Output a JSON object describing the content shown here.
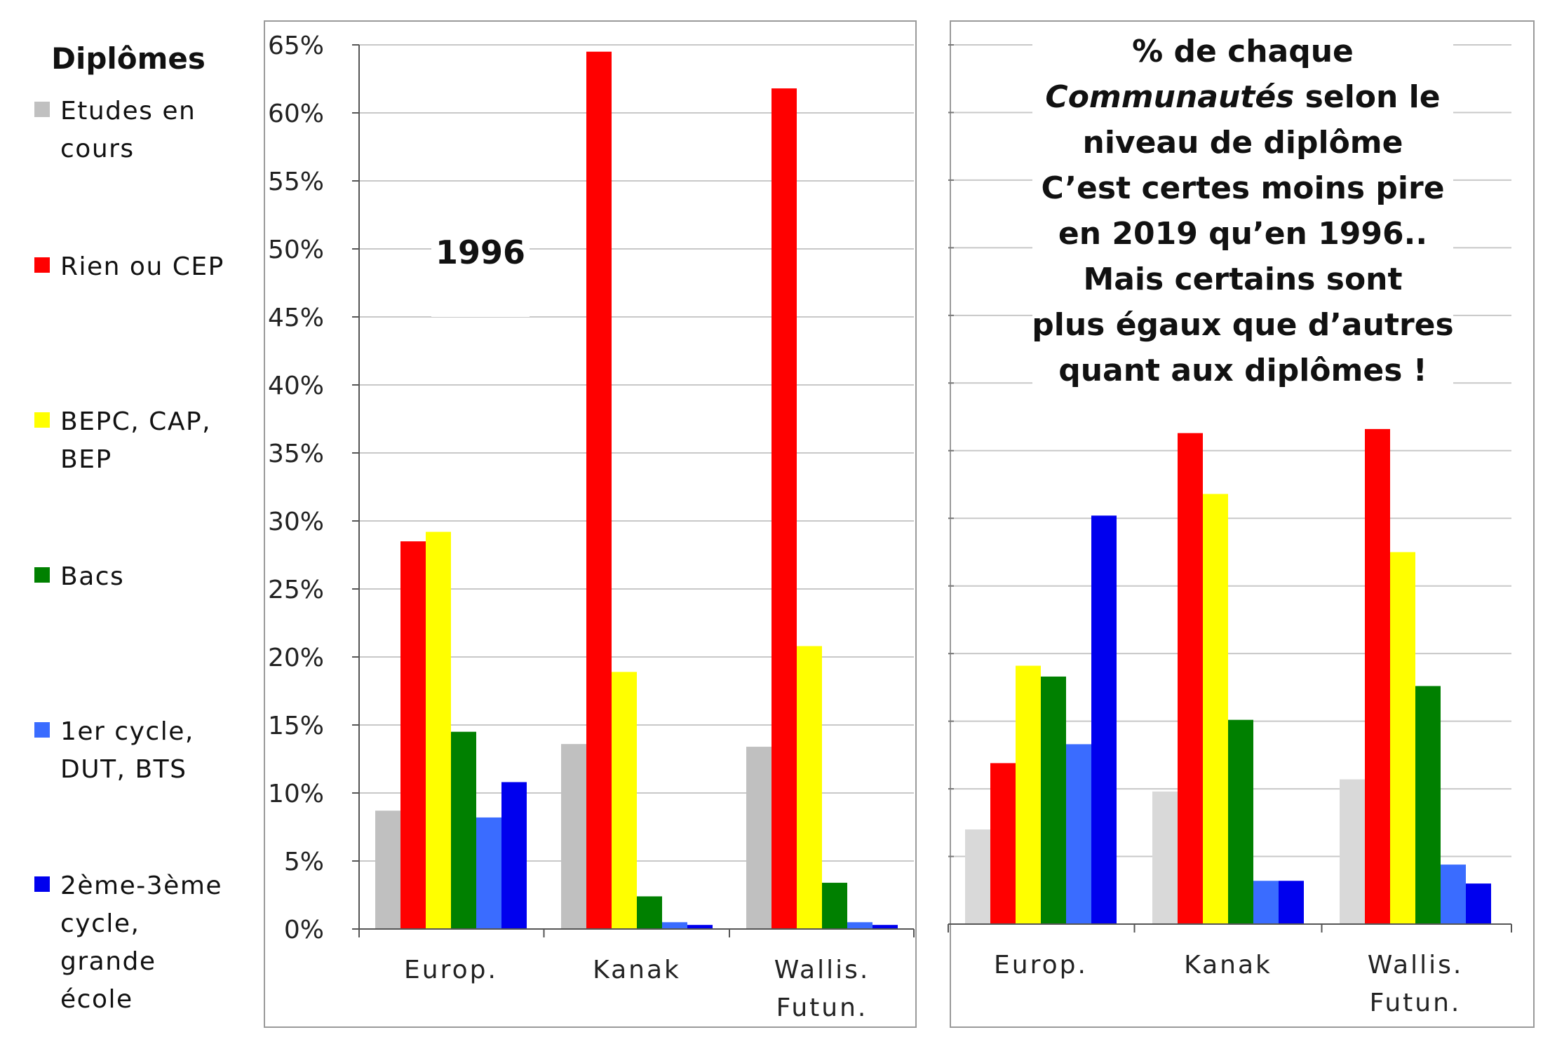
{
  "legend": {
    "title": "Diplômes",
    "items": [
      {
        "lines": [
          "Etudes en",
          "cours"
        ],
        "color": "#c0c0c0"
      },
      {
        "lines": [
          "Rien ou CEP"
        ],
        "color": "#ff0000"
      },
      {
        "lines": [
          "BEPC, CAP,",
          "BEP"
        ],
        "color": "#ffff00"
      },
      {
        "lines": [
          "Bacs"
        ],
        "color": "#008000"
      },
      {
        "lines": [
          "1er cycle,",
          "DUT, BTS"
        ],
        "color": "#3a6cff"
      },
      {
        "lines": [
          "2ème-3ème",
          "cycle,",
          "grande",
          "école"
        ],
        "color": "#0000ee"
      }
    ]
  },
  "annotation_right": {
    "lines": [
      [
        {
          "text": "% de chaque",
          "italic": false
        }
      ],
      [
        {
          "text": "Communautés",
          "italic": true
        },
        {
          "text": " selon le",
          "italic": false
        }
      ],
      [
        {
          "text": "niveau de diplôme",
          "italic": false
        }
      ],
      [
        {
          "text": "C’est certes moins pire",
          "italic": false
        }
      ],
      [
        {
          "text": "en 2019 qu’en 1996..",
          "italic": false
        }
      ],
      [
        {
          "text": "Mais certains sont",
          "italic": false
        }
      ],
      [
        {
          "text": "plus égaux que d’autres",
          "italic": false
        }
      ],
      [
        {
          "text": "quant aux diplômes !",
          "italic": false
        }
      ]
    ]
  },
  "chart_data": [
    {
      "type": "bar",
      "annotation": "1996",
      "categories": [
        [
          "Europ."
        ],
        [
          "Kanak"
        ],
        [
          "Wallis.",
          "Futun."
        ]
      ],
      "ylim": [
        0,
        65
      ],
      "yticks": [
        "0%",
        "5%",
        "10%",
        "15%",
        "20%",
        "25%",
        "30%",
        "35%",
        "40%",
        "45%",
        "50%",
        "55%",
        "60%",
        "65%"
      ],
      "grid": true,
      "series": [
        {
          "name": "Etudes en cours",
          "color": "#c0c0c0",
          "values": [
            8.7,
            13.6,
            13.4
          ]
        },
        {
          "name": "Rien ou CEP",
          "color": "#ff0000",
          "values": [
            28.5,
            64.5,
            61.8
          ]
        },
        {
          "name": "BEPC, CAP, BEP",
          "color": "#ffff00",
          "values": [
            29.2,
            18.9,
            20.8
          ]
        },
        {
          "name": "Bacs",
          "color": "#008000",
          "values": [
            14.5,
            2.4,
            3.4
          ]
        },
        {
          "name": "1er cycle, DUT, BTS",
          "color": "#3a6cff",
          "values": [
            8.2,
            0.5,
            0.5
          ]
        },
        {
          "name": "2ème-3ème cycle, grande école",
          "color": "#0000ee",
          "values": [
            10.8,
            0.3,
            0.3
          ]
        }
      ]
    },
    {
      "type": "bar",
      "annotation": "",
      "categories": [
        [
          "Europ."
        ],
        [
          "Kanak"
        ],
        [
          "Wallis.",
          "Futun."
        ]
      ],
      "ylim": [
        0,
        65
      ],
      "yticks": [],
      "grid": true,
      "series": [
        {
          "name": "Etudes en cours",
          "color": "#d9d9d9",
          "values": [
            7.0,
            9.8,
            10.7
          ]
        },
        {
          "name": "Rien ou CEP",
          "color": "#ff0000",
          "values": [
            11.9,
            36.3,
            36.6
          ]
        },
        {
          "name": "BEPC, CAP, BEP",
          "color": "#ffff00",
          "values": [
            19.1,
            31.8,
            27.5
          ]
        },
        {
          "name": "Bacs",
          "color": "#008000",
          "values": [
            18.3,
            15.1,
            17.6
          ]
        },
        {
          "name": "1er cycle, DUT, BTS",
          "color": "#3a6cff",
          "values": [
            13.3,
            3.2,
            4.4
          ]
        },
        {
          "name": "2ème-3ème cycle, grande école",
          "color": "#0000ee",
          "values": [
            30.2,
            3.2,
            3.0
          ]
        }
      ]
    }
  ]
}
